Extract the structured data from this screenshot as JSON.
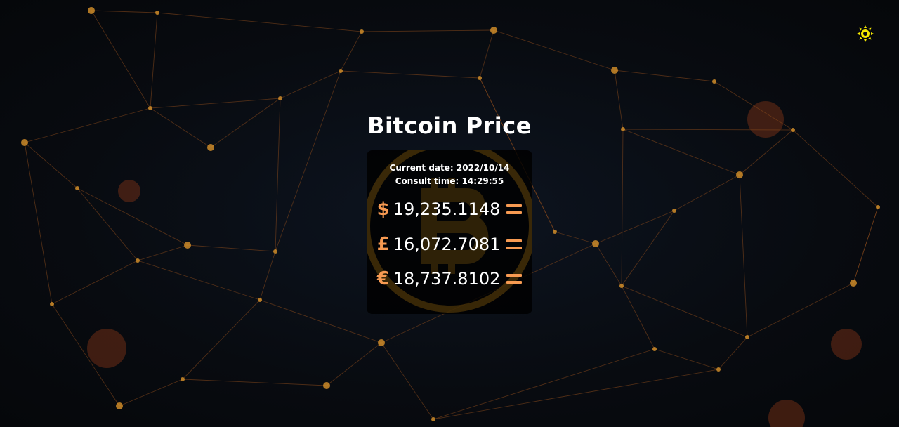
{
  "page": {
    "title": "Bitcoin Price"
  },
  "theme": {
    "toggle_icon": "sun-icon",
    "toggle_color": "#f5e800"
  },
  "card": {
    "current_date_label": "Current date: 2022/10/14",
    "consult_time_label": "Consult time: 14:29:55"
  },
  "prices": [
    {
      "symbol": "$",
      "value": "19,235.1148",
      "icon": "dollar-icon"
    },
    {
      "symbol": "£",
      "value": "16,072.7081",
      "icon": "pound-icon"
    },
    {
      "symbol": "€",
      "value": "18,737.8102",
      "icon": "euro-icon"
    }
  ],
  "colors": {
    "accent": "#f79a52",
    "text": "#ffffff",
    "background": "#07090c",
    "network_line": "#8a4a1c",
    "network_node": "#d8922a",
    "watermark": "#c98a12"
  }
}
